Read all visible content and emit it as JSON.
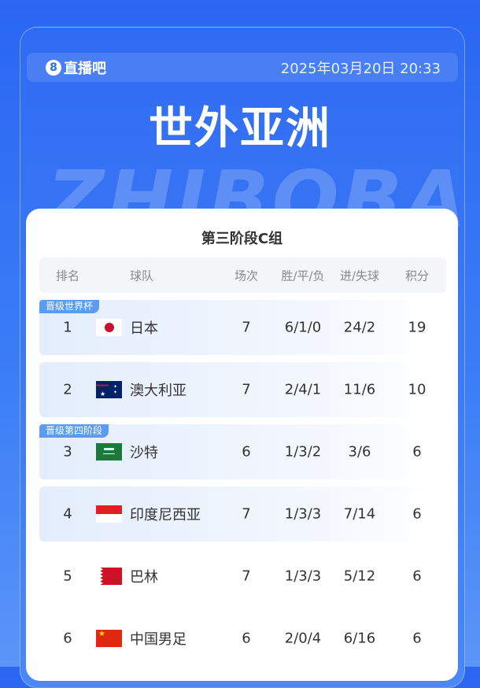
{
  "header": {
    "logo": "直播吧",
    "logo_mark": "8",
    "datetime": "2025年03月20日 20:33",
    "title": "世外亚洲",
    "watermark": "ZHIBOBA"
  },
  "table": {
    "group": "第三阶段C组",
    "columns": [
      "排名",
      "球队",
      "场次",
      "胜/平/负",
      "进/失球",
      "积分"
    ],
    "badges": {
      "qualified": "晋级世界杯",
      "fourth_stage": "晋级第四阶段"
    },
    "rows": [
      {
        "rank": "1",
        "team": "日本",
        "flag": "japan-flag",
        "played": "7",
        "wdl": "6/1/0",
        "goals": "24/2",
        "points": "19"
      },
      {
        "rank": "2",
        "team": "澳大利亚",
        "flag": "australia-flag",
        "played": "7",
        "wdl": "2/4/1",
        "goals": "11/6",
        "points": "10"
      },
      {
        "rank": "3",
        "team": "沙特",
        "flag": "saudi-arabia-flag",
        "played": "6",
        "wdl": "1/3/2",
        "goals": "3/6",
        "points": "6"
      },
      {
        "rank": "4",
        "team": "印度尼西亚",
        "flag": "indonesia-flag",
        "played": "7",
        "wdl": "1/3/3",
        "goals": "7/14",
        "points": "6"
      },
      {
        "rank": "5",
        "team": "巴林",
        "flag": "bahrain-flag",
        "played": "7",
        "wdl": "1/3/3",
        "goals": "5/12",
        "points": "6"
      },
      {
        "rank": "6",
        "team": "中国男足",
        "flag": "china-flag",
        "played": "6",
        "wdl": "2/0/4",
        "goals": "6/16",
        "points": "6"
      }
    ]
  }
}
